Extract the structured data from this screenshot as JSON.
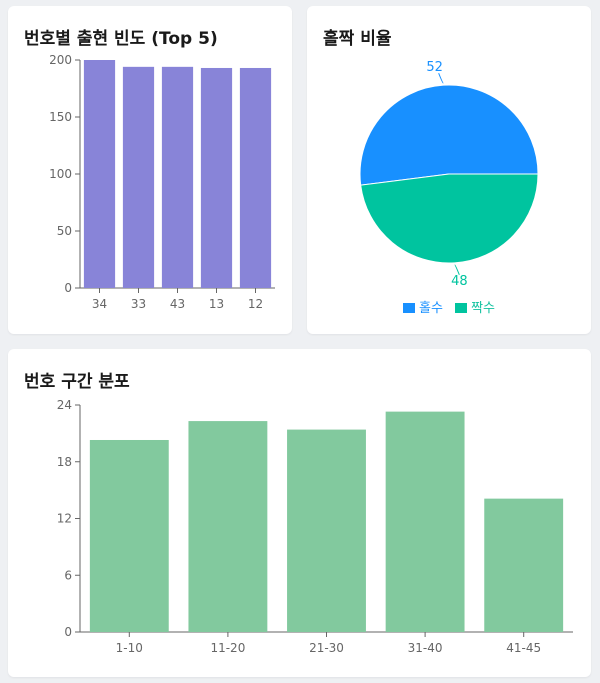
{
  "cards": {
    "top5_title": "번호별 출현 빈도 (Top 5)",
    "oddeven_title": "홀짝 비율",
    "range_title": "번호 구간 분포"
  },
  "chart_data": [
    {
      "id": "top5",
      "type": "bar",
      "title": "번호별 출현 빈도 (Top 5)",
      "categories": [
        "34",
        "33",
        "43",
        "13",
        "12"
      ],
      "values": [
        200,
        194,
        194,
        193,
        193
      ],
      "ylim": [
        0,
        200
      ],
      "yticks": [
        0,
        50,
        100,
        150,
        200
      ],
      "color": "#8884d8",
      "grid": false
    },
    {
      "id": "oddeven",
      "type": "pie",
      "title": "홀짝 비율",
      "labels": [
        "홀수",
        "짝수"
      ],
      "values": [
        52,
        48
      ],
      "colors": [
        "#1890ff",
        "#00c49f"
      ],
      "legend": "bottom"
    },
    {
      "id": "range",
      "type": "bar",
      "title": "번호 구간 분포",
      "categories": [
        "1-10",
        "11-20",
        "21-30",
        "31-40",
        "41-45"
      ],
      "values": [
        20.3,
        22.3,
        21.4,
        23.3,
        14.1
      ],
      "ylim": [
        0,
        24
      ],
      "yticks": [
        0,
        6,
        12,
        18,
        24
      ],
      "color": "#82c99e",
      "grid": false
    }
  ]
}
